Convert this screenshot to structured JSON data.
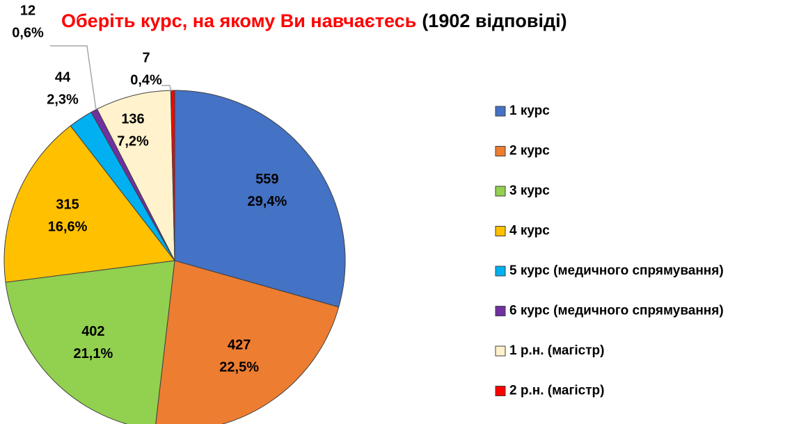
{
  "chart_data": {
    "type": "pie",
    "title": {
      "main": "Оберіть курс, на якому Ви навчаєтесь",
      "note": "(1902 відповіді)"
    },
    "categories": [
      "1 курс",
      "2 курс",
      "3 курс",
      "4 курс",
      "5 курс (медичного спрямування)",
      "6 курс (медичного спрямування)",
      "1 р.н. (магістр)",
      "2 р.н. (магістр)"
    ],
    "values": [
      559,
      427,
      402,
      315,
      44,
      12,
      136,
      7
    ],
    "shares": [
      29.4,
      22.5,
      21.1,
      16.6,
      2.3,
      0.6,
      7.2,
      0.4
    ],
    "share_labels": [
      "29,4%",
      "22,5%",
      "21,1%",
      "16,6%",
      "2,3%",
      "0,6%",
      "7,2%",
      "0,4%"
    ],
    "colors": [
      "#4472c4",
      "#ed7d31",
      "#92d050",
      "#ffc000",
      "#00b0f0",
      "#7030a0",
      "#fff2cc",
      "#ff0000"
    ],
    "legend": "right"
  }
}
